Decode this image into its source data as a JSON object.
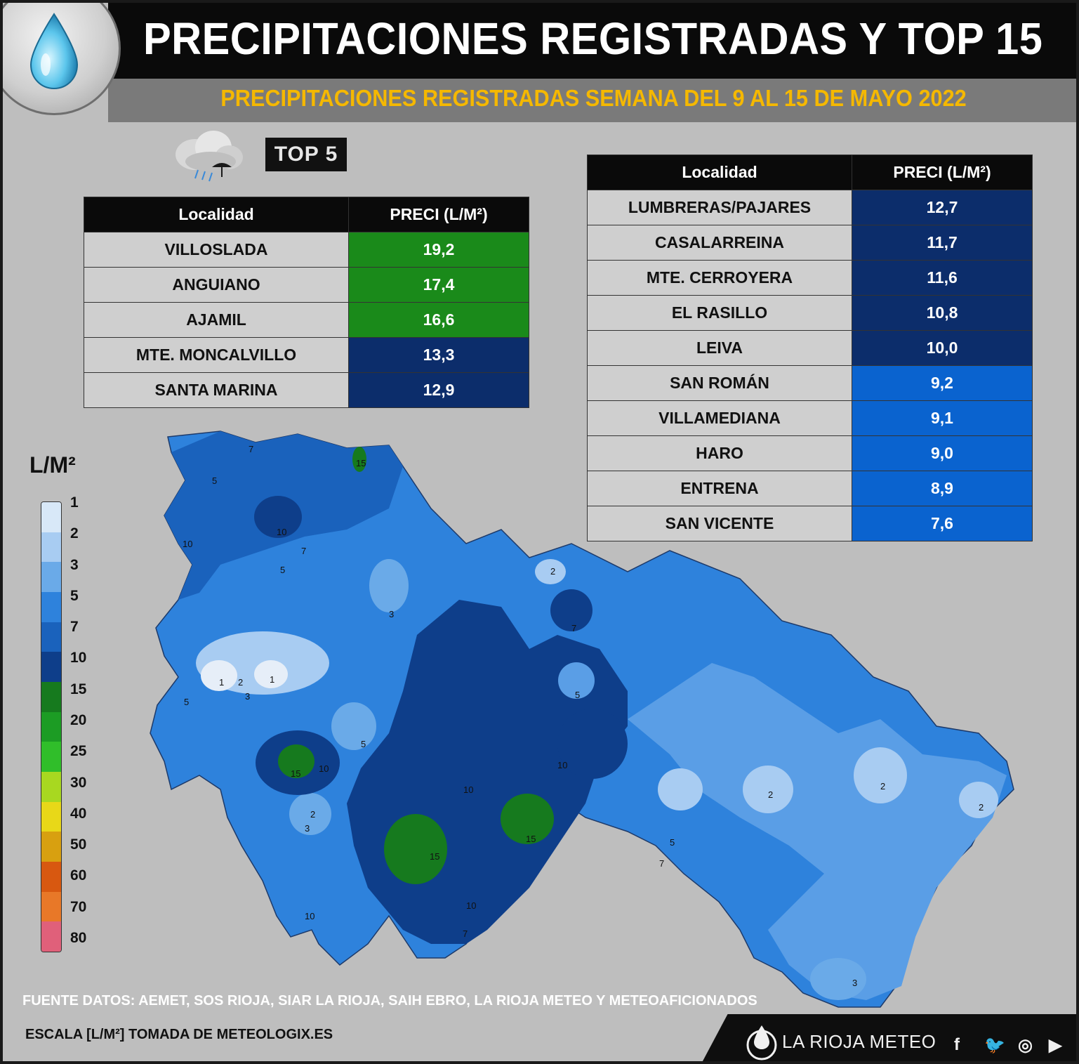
{
  "header": {
    "title": "PRECIPITACIONES REGISTRADAS Y TOP 15",
    "subtitle": "PRECIPITACIONES REGISTRADAS SEMANA DEL 9 AL 15 DE MAYO 2022",
    "top5_badge": "TOP 5"
  },
  "top5": {
    "col_location": "Localidad",
    "col_value": "PRECI (L/M²)",
    "rows": [
      {
        "location": "VILLOSLADA",
        "value": "19,2",
        "color": "#1a8a1a"
      },
      {
        "location": "ANGUIANO",
        "value": "17,4",
        "color": "#1a8a1a"
      },
      {
        "location": "AJAMIL",
        "value": "16,6",
        "color": "#1a8a1a"
      },
      {
        "location": "MTE. MONCALVILLO",
        "value": "13,3",
        "color": "#0c2d6b"
      },
      {
        "location": "SANTA MARINA",
        "value": "12,9",
        "color": "#0c2d6b"
      }
    ]
  },
  "top15": {
    "col_location": "Localidad",
    "col_value": "PRECI (L/M²)",
    "rows": [
      {
        "location": "LUMBRERAS/PAJARES",
        "value": "12,7",
        "color": "#0c2d6b"
      },
      {
        "location": "CASALARREINA",
        "value": "11,7",
        "color": "#0c2d6b"
      },
      {
        "location": "MTE. CERROYERA",
        "value": "11,6",
        "color": "#0c2d6b"
      },
      {
        "location": "EL RASILLO",
        "value": "10,8",
        "color": "#0c2d6b"
      },
      {
        "location": "LEIVA",
        "value": "10,0",
        "color": "#0c2d6b"
      },
      {
        "location": "SAN ROMÁN",
        "value": "9,2",
        "color": "#0a63cf"
      },
      {
        "location": "VILLAMEDIANA",
        "value": "9,1",
        "color": "#0a63cf"
      },
      {
        "location": "HARO",
        "value": "9,0",
        "color": "#0a63cf"
      },
      {
        "location": "ENTRENA",
        "value": "8,9",
        "color": "#0a63cf"
      },
      {
        "location": "SAN VICENTE",
        "value": "7,6",
        "color": "#0a63cf"
      }
    ]
  },
  "legend": {
    "unit": "L/M²",
    "levels": [
      {
        "label": "1",
        "color": "#d8e8f8"
      },
      {
        "label": "2",
        "color": "#a8ccf2"
      },
      {
        "label": "3",
        "color": "#6aaae8"
      },
      {
        "label": "5",
        "color": "#2e82dc"
      },
      {
        "label": "7",
        "color": "#1a62bc"
      },
      {
        "label": "10",
        "color": "#0e3e8a"
      },
      {
        "label": "15",
        "color": "#167a1e"
      },
      {
        "label": "20",
        "color": "#1c9c24"
      },
      {
        "label": "25",
        "color": "#30be2a"
      },
      {
        "label": "30",
        "color": "#a8d820"
      },
      {
        "label": "40",
        "color": "#e8d818"
      },
      {
        "label": "50",
        "color": "#d8a010"
      },
      {
        "label": "60",
        "color": "#d85810"
      },
      {
        "label": "70",
        "color": "#e87828"
      },
      {
        "label": "80",
        "color": "#e0607a"
      }
    ]
  },
  "map": {
    "contour_labels": [
      "1",
      "2",
      "3",
      "5",
      "7",
      "10",
      "15"
    ]
  },
  "footer": {
    "sources": "FUENTE DATOS: AEMET, SOS RIOJA, SIAR LA RIOJA, SAIH EBRO, LA RIOJA METEO  Y METEOAFICIONADOS",
    "scale_note": "ESCALA [L/M²] TOMADA DE METEOLOGIX.ES",
    "brand": "LA RIOJA METEO"
  }
}
